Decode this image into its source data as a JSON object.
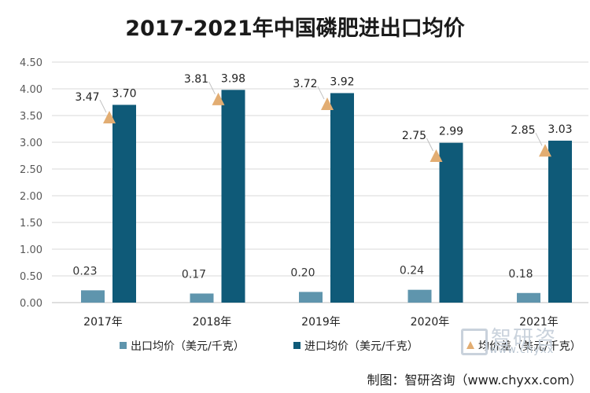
{
  "page": {
    "title": "2017-2021年中国磷肥进出口均价",
    "source": "制图：智研咨询（www.chyxx.com）",
    "watermark_cn": "智研咨",
    "watermark_url": "www.chyxx"
  },
  "chart_data": {
    "type": "bar",
    "title": "2017-2021年中国磷肥进出口均价",
    "categories": [
      "2017年",
      "2018年",
      "2019年",
      "2020年",
      "2021年"
    ],
    "ylim": [
      0,
      4.5
    ],
    "yticks": [
      "0.00",
      "0.50",
      "1.00",
      "1.50",
      "2.00",
      "2.50",
      "3.00",
      "3.50",
      "4.00",
      "4.50"
    ],
    "grid": true,
    "legend_position": "bottom",
    "series": [
      {
        "name": "出口均价（美元/千克）",
        "kind": "bar",
        "color": "#5f95ad",
        "values": [
          0.23,
          0.17,
          0.2,
          0.24,
          0.18
        ],
        "labels": [
          "0.23",
          "0.17",
          "0.20",
          "0.24",
          "0.18"
        ]
      },
      {
        "name": "进口均价（美元/千克）",
        "kind": "bar",
        "color": "#0f5a78",
        "values": [
          3.7,
          3.98,
          3.92,
          2.99,
          3.03
        ],
        "labels": [
          "3.70",
          "3.98",
          "3.92",
          "2.99",
          "3.03"
        ]
      },
      {
        "name": "均价差（美元/千克）",
        "kind": "marker",
        "marker": "triangle",
        "color": "#e2ad72",
        "values": [
          3.47,
          3.81,
          3.72,
          2.75,
          2.85
        ],
        "labels": [
          "3.47",
          "3.81",
          "3.72",
          "2.75",
          "2.85"
        ]
      }
    ]
  }
}
